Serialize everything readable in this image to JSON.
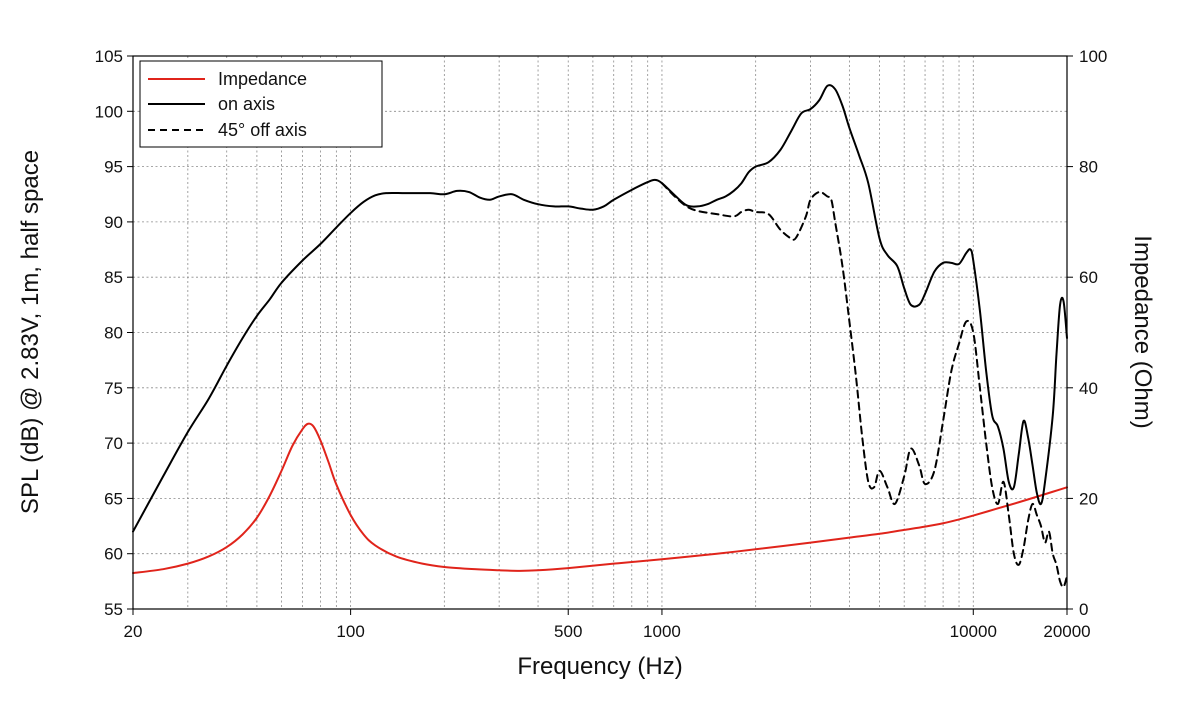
{
  "chart_data": {
    "type": "line",
    "xlabel": "Frequency (Hz)",
    "ylabel": "SPL (dB) @ 2.83V, 1m, half space",
    "y2label": "Impedance (Ohm)",
    "xscale": "log",
    "xlim": [
      20,
      20000
    ],
    "ylim": [
      55,
      105
    ],
    "y2lim": [
      0,
      100
    ],
    "xticks": [
      20,
      100,
      500,
      1000,
      10000,
      20000
    ],
    "xtick_labels": [
      "20",
      "100",
      "500",
      "1000",
      "10000",
      "20000"
    ],
    "yticks": [
      55,
      60,
      65,
      70,
      75,
      80,
      85,
      90,
      95,
      100,
      105
    ],
    "yticks_labels": [
      "55",
      "60",
      "65",
      "70",
      "75",
      "80",
      "85",
      "90",
      "95",
      "100",
      "105"
    ],
    "y2ticks": [
      0,
      20,
      40,
      60,
      80,
      100
    ],
    "y2tick_labels": [
      "0",
      "20",
      "40",
      "60",
      "80",
      "100"
    ],
    "grid": true,
    "legend_position": "top-left",
    "series": [
      {
        "name": "Impedance",
        "color": "#e0241b",
        "dash": "solid",
        "axis": "right",
        "points": [
          [
            20,
            6.5
          ],
          [
            25,
            7.2
          ],
          [
            30,
            8.2
          ],
          [
            35,
            9.5
          ],
          [
            40,
            11.2
          ],
          [
            45,
            13.5
          ],
          [
            50,
            16.5
          ],
          [
            55,
            20.5
          ],
          [
            60,
            25
          ],
          [
            65,
            29.5
          ],
          [
            70,
            32.5
          ],
          [
            73,
            33.5
          ],
          [
            76,
            33
          ],
          [
            80,
            30.5
          ],
          [
            85,
            26.5
          ],
          [
            90,
            22.5
          ],
          [
            100,
            17
          ],
          [
            110,
            13.5
          ],
          [
            120,
            11.5
          ],
          [
            140,
            9.5
          ],
          [
            170,
            8.2
          ],
          [
            200,
            7.6
          ],
          [
            250,
            7.2
          ],
          [
            300,
            7
          ],
          [
            350,
            6.9
          ],
          [
            400,
            7
          ],
          [
            500,
            7.4
          ],
          [
            700,
            8.2
          ],
          [
            1000,
            9
          ],
          [
            1500,
            10
          ],
          [
            2000,
            10.8
          ],
          [
            3000,
            12
          ],
          [
            4000,
            12.9
          ],
          [
            5000,
            13.6
          ],
          [
            6000,
            14.3
          ],
          [
            7000,
            14.9
          ],
          [
            8000,
            15.5
          ],
          [
            9000,
            16.2
          ],
          [
            10000,
            16.9
          ],
          [
            12000,
            18.2
          ],
          [
            14000,
            19.3
          ],
          [
            16000,
            20.3
          ],
          [
            18000,
            21.2
          ],
          [
            20000,
            22
          ]
        ]
      },
      {
        "name": "on axis",
        "color": "#000000",
        "dash": "solid",
        "axis": "left",
        "points": [
          [
            20,
            62
          ],
          [
            25,
            67
          ],
          [
            30,
            71
          ],
          [
            35,
            74
          ],
          [
            40,
            77
          ],
          [
            45,
            79.5
          ],
          [
            50,
            81.5
          ],
          [
            55,
            83
          ],
          [
            60,
            84.5
          ],
          [
            70,
            86.5
          ],
          [
            80,
            88
          ],
          [
            90,
            89.5
          ],
          [
            100,
            90.8
          ],
          [
            110,
            91.8
          ],
          [
            120,
            92.4
          ],
          [
            130,
            92.6
          ],
          [
            150,
            92.6
          ],
          [
            180,
            92.6
          ],
          [
            200,
            92.5
          ],
          [
            220,
            92.8
          ],
          [
            240,
            92.7
          ],
          [
            260,
            92.2
          ],
          [
            280,
            92.0
          ],
          [
            300,
            92.3
          ],
          [
            330,
            92.5
          ],
          [
            360,
            92.0
          ],
          [
            400,
            91.6
          ],
          [
            450,
            91.4
          ],
          [
            500,
            91.4
          ],
          [
            550,
            91.2
          ],
          [
            600,
            91.1
          ],
          [
            650,
            91.4
          ],
          [
            700,
            92.0
          ],
          [
            800,
            92.9
          ],
          [
            900,
            93.6
          ],
          [
            950,
            93.8
          ],
          [
            1000,
            93.5
          ],
          [
            1100,
            92.4
          ],
          [
            1200,
            91.5
          ],
          [
            1300,
            91.4
          ],
          [
            1400,
            91.6
          ],
          [
            1500,
            92.0
          ],
          [
            1600,
            92.3
          ],
          [
            1700,
            92.8
          ],
          [
            1800,
            93.5
          ],
          [
            1900,
            94.5
          ],
          [
            2000,
            95.0
          ],
          [
            2200,
            95.4
          ],
          [
            2400,
            96.5
          ],
          [
            2600,
            98.2
          ],
          [
            2800,
            99.8
          ],
          [
            3000,
            100.2
          ],
          [
            3200,
            101.0
          ],
          [
            3400,
            102.3
          ],
          [
            3600,
            102.0
          ],
          [
            3800,
            100.5
          ],
          [
            4000,
            98.5
          ],
          [
            4300,
            96.0
          ],
          [
            4600,
            93.5
          ],
          [
            5000,
            88.5
          ],
          [
            5300,
            87.0
          ],
          [
            5700,
            86.0
          ],
          [
            6000,
            84.0
          ],
          [
            6300,
            82.5
          ],
          [
            6700,
            82.5
          ],
          [
            7000,
            83.5
          ],
          [
            7500,
            85.5
          ],
          [
            8000,
            86.3
          ],
          [
            8500,
            86.3
          ],
          [
            9000,
            86.2
          ],
          [
            9500,
            87.2
          ],
          [
            9800,
            87.5
          ],
          [
            10000,
            86.5
          ],
          [
            10500,
            82.0
          ],
          [
            11000,
            76.5
          ],
          [
            11500,
            72.5
          ],
          [
            12000,
            71.5
          ],
          [
            12500,
            69.5
          ],
          [
            13000,
            66.5
          ],
          [
            13500,
            66.0
          ],
          [
            14000,
            69.0
          ],
          [
            14500,
            72.0
          ],
          [
            15000,
            70.5
          ],
          [
            15500,
            68.0
          ],
          [
            16000,
            65.5
          ],
          [
            16500,
            64.5
          ],
          [
            17000,
            66.5
          ],
          [
            18000,
            72.5
          ],
          [
            18500,
            78.0
          ],
          [
            19000,
            82.5
          ],
          [
            19500,
            82.8
          ],
          [
            20000,
            79.5
          ]
        ]
      },
      {
        "name": "45° off axis",
        "color": "#000000",
        "dash": "dashed",
        "axis": "left",
        "points": [
          [
            1000,
            93.5
          ],
          [
            1100,
            92.3
          ],
          [
            1200,
            91.4
          ],
          [
            1300,
            91.0
          ],
          [
            1500,
            90.7
          ],
          [
            1700,
            90.5
          ],
          [
            1800,
            90.9
          ],
          [
            1900,
            91.1
          ],
          [
            2000,
            90.9
          ],
          [
            2200,
            90.7
          ],
          [
            2400,
            89.3
          ],
          [
            2600,
            88.5
          ],
          [
            2700,
            88.6
          ],
          [
            2900,
            90.5
          ],
          [
            3000,
            92.0
          ],
          [
            3200,
            92.7
          ],
          [
            3400,
            92.3
          ],
          [
            3500,
            92.0
          ],
          [
            3600,
            90.0
          ],
          [
            3800,
            86.0
          ],
          [
            4000,
            81.0
          ],
          [
            4200,
            76.0
          ],
          [
            4400,
            70.5
          ],
          [
            4600,
            66.5
          ],
          [
            4800,
            66.0
          ],
          [
            5000,
            67.5
          ],
          [
            5300,
            66.0
          ],
          [
            5600,
            64.5
          ],
          [
            6000,
            67.0
          ],
          [
            6300,
            69.5
          ],
          [
            6700,
            68.0
          ],
          [
            7000,
            66.3
          ],
          [
            7500,
            67.5
          ],
          [
            8000,
            72.0
          ],
          [
            8500,
            76.5
          ],
          [
            9000,
            79.0
          ],
          [
            9500,
            81.0
          ],
          [
            10000,
            80.0
          ],
          [
            10500,
            75.0
          ],
          [
            11000,
            70.0
          ],
          [
            11500,
            66.0
          ],
          [
            12000,
            64.5
          ],
          [
            12500,
            66.5
          ],
          [
            13000,
            63.5
          ],
          [
            13500,
            60.0
          ],
          [
            14000,
            59.0
          ],
          [
            14500,
            60.5
          ],
          [
            15000,
            63.0
          ],
          [
            15500,
            64.5
          ],
          [
            16000,
            63.5
          ],
          [
            16500,
            62.5
          ],
          [
            17000,
            61.0
          ],
          [
            17500,
            62.0
          ],
          [
            18000,
            60.0
          ],
          [
            18500,
            59.0
          ],
          [
            19000,
            57.5
          ],
          [
            19500,
            57.0
          ],
          [
            20000,
            58.0
          ]
        ]
      }
    ]
  }
}
